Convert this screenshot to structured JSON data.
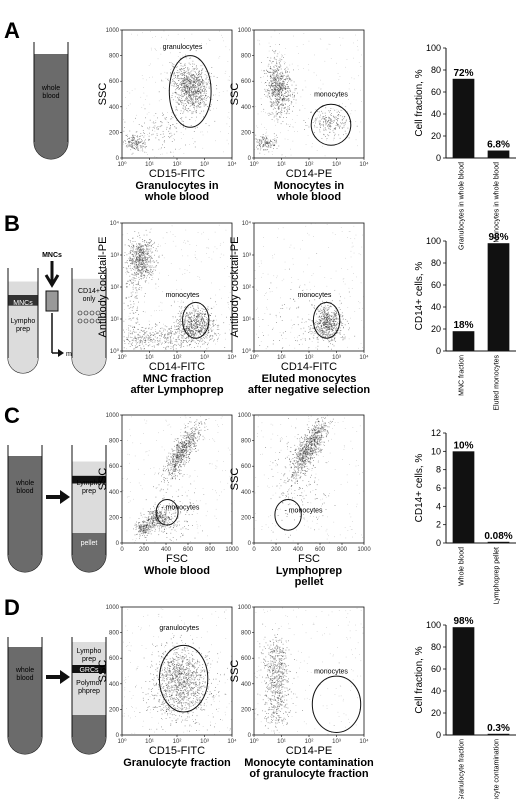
{
  "colors": {
    "blood": "#6b6b6b",
    "light": "#dcdcdc",
    "ink": "#111111",
    "bar": "#111111"
  },
  "rows": [
    {
      "letter": "A",
      "tube": {
        "label": "whole\nblood"
      },
      "plots": [
        {
          "ylabel": "SSC",
          "xlabel": "CD15-FITC",
          "caption": [
            "Granulocytes in",
            "whole blood"
          ],
          "gate_label": "granulocytes",
          "x_ticks": [
            "10⁰",
            "10¹",
            "10²",
            "10³",
            "10⁴"
          ],
          "y_ticks": [
            "0",
            "200",
            "400",
            "600",
            "800",
            "1000"
          ]
        },
        {
          "ylabel": "SSC",
          "xlabel": "CD14-PE",
          "caption": [
            "Monocytes in",
            "whole blood"
          ],
          "gate_label": "monocytes",
          "x_ticks": [
            "10⁰",
            "10¹",
            "10²",
            "10³",
            "10⁴"
          ],
          "y_ticks": [
            "0",
            "200",
            "400",
            "600",
            "800",
            "1000"
          ]
        }
      ]
    },
    {
      "letter": "B",
      "tube": {
        "label_mncs": "MNCs",
        "label_lympho": "Lympho\nprep",
        "arrow_label": "MNCs",
        "cd14_label": "CD14+\nonly",
        "monocytes_label": "monocytes"
      },
      "plots": [
        {
          "ylabel": "Antibody cocktail-PE",
          "xlabel": "CD14-FITC",
          "caption": [
            "MNC fraction",
            "after Lymphoprep"
          ],
          "gate_label": "monocytes",
          "x_ticks": [
            "10⁰",
            "10¹",
            "10²",
            "10³",
            "10⁴"
          ],
          "y_ticks": [
            "10⁰",
            "10¹",
            "10²",
            "10³",
            "10⁴"
          ]
        },
        {
          "ylabel": "Antibody cocktail-PE",
          "xlabel": "CD14-FITC",
          "caption": [
            "Eluted monocytes",
            "after negative selection"
          ],
          "gate_label": "monocytes",
          "x_ticks": [
            "10⁰",
            "10¹",
            "10²",
            "10³",
            "10⁴"
          ],
          "y_ticks": [
            "10⁰",
            "10¹",
            "10²",
            "10³",
            "10⁴"
          ]
        }
      ]
    },
    {
      "letter": "C",
      "tube": {
        "label_left": "whole\nblood",
        "label_right": "Lympho\nprep",
        "label_pellet": "pellet"
      },
      "plots": [
        {
          "ylabel": "SSC",
          "xlabel": "FSC",
          "caption": [
            "Whole blood"
          ],
          "gate_label": "- monocytes",
          "x_ticks": [
            "0",
            "200",
            "400",
            "600",
            "800",
            "1000"
          ],
          "y_ticks": [
            "0",
            "200",
            "400",
            "600",
            "800",
            "1000"
          ]
        },
        {
          "ylabel": "SSC",
          "xlabel": "FSC",
          "caption": [
            "Lymphoprep",
            "pellet"
          ],
          "gate_label": "- monocytes",
          "x_ticks": [
            "0",
            "200",
            "400",
            "600",
            "800",
            "1000"
          ],
          "y_ticks": [
            "0",
            "200",
            "400",
            "600",
            "800",
            "1000"
          ]
        }
      ]
    },
    {
      "letter": "D",
      "tube": {
        "label_left": "whole\nblood",
        "label_lympho": "Lympho\nprep",
        "label_grcs": "GRCs",
        "label_polymor": "Polymor\nphprep"
      },
      "plots": [
        {
          "ylabel": "SSC",
          "xlabel": "CD15-FITC",
          "caption": [
            "Granulocyte fraction"
          ],
          "gate_label": "granulocytes",
          "x_ticks": [
            "10⁰",
            "10¹",
            "10²",
            "10³",
            "10⁴"
          ],
          "y_ticks": [
            "0",
            "200",
            "400",
            "600",
            "800",
            "1000"
          ]
        },
        {
          "ylabel": "SSC",
          "xlabel": "CD14-PE",
          "caption": [
            "Monocyte contamination",
            "of granulocyte fraction"
          ],
          "gate_label": "monocytes",
          "x_ticks": [
            "10⁰",
            "10¹",
            "10²",
            "10³",
            "10⁴"
          ],
          "y_ticks": [
            "0",
            "200",
            "400",
            "600",
            "800",
            "1000"
          ]
        }
      ]
    }
  ],
  "chart_data": [
    {
      "type": "bar",
      "panel": "A",
      "ylabel": "Cell fraction, %",
      "categories": [
        "Granulocytes in whole blood",
        "Monocytes in whole blood"
      ],
      "values": [
        72,
        6.8
      ],
      "value_labels": [
        "72%",
        "6.8%"
      ],
      "ylim": [
        0,
        100
      ],
      "yticks": [
        "0",
        "20",
        "40",
        "60",
        "80",
        "100"
      ]
    },
    {
      "type": "bar",
      "panel": "B",
      "ylabel": "CD14+ cells, %",
      "categories": [
        "MNC fraction",
        "Eluted monocytes"
      ],
      "values": [
        18,
        98
      ],
      "value_labels": [
        "18%",
        "98%"
      ],
      "ylim": [
        0,
        100
      ],
      "yticks": [
        "0",
        "20",
        "40",
        "60",
        "80",
        "100"
      ]
    },
    {
      "type": "bar",
      "panel": "C",
      "ylabel": "CD14+ cells, %",
      "categories": [
        "Whole blood",
        "Lymphoprep pellet"
      ],
      "values": [
        10,
        0.08
      ],
      "value_labels": [
        "10%",
        "0.08%"
      ],
      "ylim": [
        0,
        12
      ],
      "yticks": [
        "0",
        "2",
        "4",
        "6",
        "8",
        "10",
        "12"
      ]
    },
    {
      "type": "bar",
      "panel": "D",
      "ylabel": "Cell fraction, %",
      "categories": [
        "Granulocyte fraction",
        "Monocyte contamination"
      ],
      "values": [
        98,
        0.3
      ],
      "value_labels": [
        "98%",
        "0.3%"
      ],
      "ylim": [
        0,
        100
      ],
      "yticks": [
        "0",
        "20",
        "40",
        "60",
        "80",
        "100"
      ]
    }
  ]
}
